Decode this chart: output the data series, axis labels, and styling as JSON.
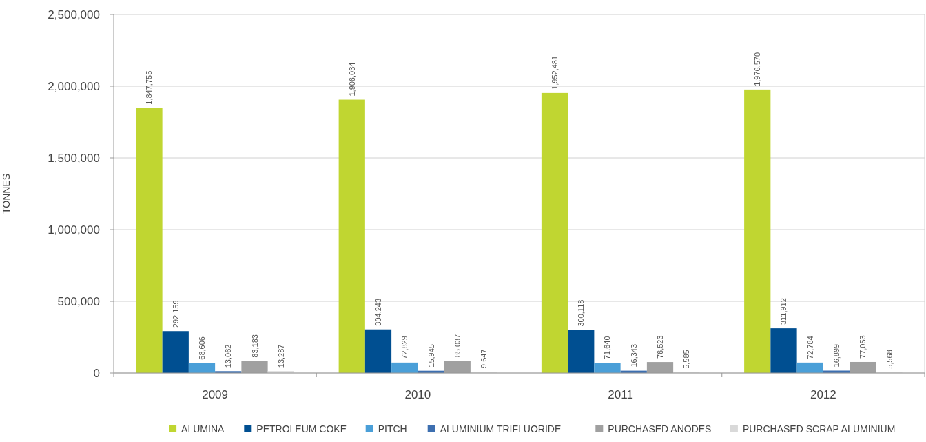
{
  "chart_data": {
    "type": "bar",
    "ylabel": "TONNES",
    "categories": [
      "2009",
      "2010",
      "2011",
      "2012"
    ],
    "series": [
      {
        "name": "ALUMINA",
        "color": "#c0d631",
        "values": [
          1847755,
          1906034,
          1952481,
          1976570
        ],
        "value_labels": [
          "1,847,755",
          "1,906,034",
          "1,952,481",
          "1,976,570"
        ]
      },
      {
        "name": "PETROLEUM COKE",
        "color": "#004f91",
        "values": [
          292159,
          304243,
          300118,
          311912
        ],
        "value_labels": [
          "292,159",
          "304,243",
          "300,118",
          "311,912"
        ]
      },
      {
        "name": "PITCH",
        "color": "#4a9fd8",
        "values": [
          68606,
          72829,
          71640,
          72784
        ],
        "value_labels": [
          "68,606",
          "72,829",
          "71,640",
          "72,784"
        ]
      },
      {
        "name": "ALUMINIUM TRIFLUORIDE",
        "color": "#3d6fb0",
        "values": [
          13062,
          15945,
          16343,
          16899
        ],
        "value_labels": [
          "13,062",
          "15,945",
          "16,343",
          "16,899"
        ]
      },
      {
        "name": "PURCHASED ANODES",
        "color": "#a0a0a0",
        "values": [
          83183,
          85037,
          76523,
          77053
        ],
        "value_labels": [
          "83,183",
          "85,037",
          "76,523",
          "77,053"
        ]
      },
      {
        "name": "PURCHASED SCRAP ALUMINIUM",
        "color": "#d9d9d9",
        "values": [
          13287,
          9647,
          5585,
          5568
        ],
        "value_labels": [
          "13,287",
          "9,647",
          "5,585",
          "5,568"
        ]
      }
    ],
    "ylim": [
      0,
      2500000
    ],
    "yticks": [
      {
        "value": 0,
        "label": "0"
      },
      {
        "value": 500000,
        "label": "500,000"
      },
      {
        "value": 1000000,
        "label": "1,000,000"
      },
      {
        "value": 1500000,
        "label": "1,500,000"
      },
      {
        "value": 2000000,
        "label": "2,000,000"
      },
      {
        "value": 2500000,
        "label": "2,500,000"
      }
    ],
    "grid": "y",
    "legend": "bottom"
  }
}
